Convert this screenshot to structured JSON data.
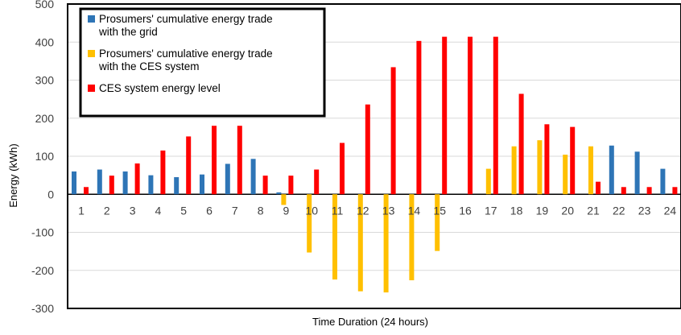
{
  "chart_data": {
    "type": "bar",
    "title": "",
    "xlabel": "Time Duration (24 hours)",
    "ylabel": "Energy (kWh)",
    "ylim": [
      -300,
      500
    ],
    "yticks": [
      -300,
      -200,
      -100,
      0,
      100,
      200,
      300,
      400,
      500
    ],
    "categories": [
      "1",
      "2",
      "3",
      "4",
      "5",
      "6",
      "7",
      "8",
      "9",
      "10",
      "11",
      "12",
      "13",
      "14",
      "15",
      "16",
      "17",
      "18",
      "19",
      "20",
      "21",
      "22",
      "23",
      "24"
    ],
    "grid": true,
    "legend_position": "top-left",
    "series": [
      {
        "name": "Prosumers' cumulative energy trade with the grid",
        "legend_lines": [
          "Prosumers' cumulative energy trade",
          "with the grid"
        ],
        "color": "#2E75B6",
        "values": [
          60,
          65,
          60,
          50,
          45,
          52,
          80,
          93,
          5,
          0,
          0,
          0,
          0,
          0,
          0,
          0,
          0,
          0,
          0,
          0,
          0,
          128,
          112,
          67
        ]
      },
      {
        "name": "Prosumers' cumulative energy trade with the CES system",
        "legend_lines": [
          "Prosumers' cumulative energy trade",
          "with the CES system"
        ],
        "color": "#FFC000",
        "values": [
          0,
          0,
          0,
          0,
          0,
          0,
          0,
          0,
          -28,
          -153,
          -224,
          -255,
          -258,
          -226,
          -149,
          0,
          67,
          126,
          142,
          104,
          126,
          0,
          0,
          0
        ]
      },
      {
        "name": "CES system energy level",
        "legend_lines": [
          "CES system energy level"
        ],
        "color": "#FF0000",
        "values": [
          19,
          49,
          81,
          115,
          152,
          180,
          180,
          49,
          49,
          65,
          135,
          236,
          334,
          403,
          414,
          414,
          414,
          264,
          184,
          177,
          33,
          19,
          19,
          19
        ]
      }
    ]
  }
}
